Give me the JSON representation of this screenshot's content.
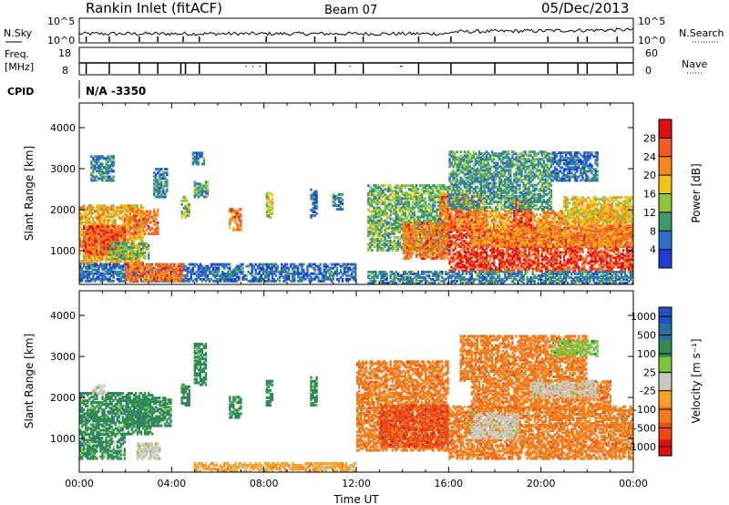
{
  "header": {
    "station": "Rankin Inlet (fitACF)",
    "beam": "Beam 07",
    "date": "05/Dec/2013"
  },
  "panels": {
    "nsky_label": "N.Sky",
    "nsky_ticks": [
      "10^5",
      "10^0"
    ],
    "nsearch_label": "N.Search",
    "nsearch_ticks": [
      "10^5",
      "10^0"
    ],
    "freq_label_top": "Freq.",
    "freq_label_units": "[MHz]",
    "freq_ticks": [
      "18",
      "8"
    ],
    "nave_label": "Nave",
    "nave_ticks": [
      "60",
      "0"
    ],
    "cpid_label": "CPID",
    "cpid_value": "N/A -3350"
  },
  "colors": {
    "power": [
      "#1f3bd6",
      "#2e6ec9",
      "#3d9a6a",
      "#8fc43e",
      "#f2c418",
      "#f7861d",
      "#f15a22",
      "#e01010"
    ],
    "velocity": [
      "#2050c8",
      "#2e6e9e",
      "#2e8c52",
      "#7cc43a",
      "#c8c8c0",
      "#f7a02a",
      "#f27a1a",
      "#e84a1a",
      "#e01010"
    ]
  },
  "chart_data": [
    {
      "type": "heatmap",
      "name": "Power",
      "xlabel": "",
      "ylabel": "Slant Range [km]",
      "x_ticks": [
        "00:00",
        "04:00",
        "08:00",
        "12:00",
        "16:00",
        "20:00",
        "00:00"
      ],
      "xlim_hours": [
        0,
        24
      ],
      "y_ticks": [
        1000,
        2000,
        3000,
        4000
      ],
      "ylim": [
        180,
        4600
      ],
      "colorbar": {
        "label": "Power [dB]",
        "ticks": [
          "4",
          "8",
          "12",
          "16",
          "20",
          "24",
          "28"
        ],
        "range": [
          0,
          32
        ]
      },
      "blobs": [
        {
          "t0": 0.0,
          "t1": 2.8,
          "r0": 600,
          "r1": 2100,
          "v": 20
        },
        {
          "t0": 0.2,
          "t1": 2.0,
          "r0": 900,
          "r1": 1600,
          "v": 26
        },
        {
          "t0": 2.2,
          "t1": 3.4,
          "r0": 1400,
          "r1": 2000,
          "v": 24
        },
        {
          "t0": 0.5,
          "t1": 1.5,
          "r0": 2700,
          "r1": 3300,
          "v": 8
        },
        {
          "t0": 3.2,
          "t1": 3.8,
          "r0": 2300,
          "r1": 3000,
          "v": 8
        },
        {
          "t0": 4.9,
          "t1": 5.4,
          "r0": 3100,
          "r1": 3400,
          "v": 8
        },
        {
          "t0": 4.4,
          "t1": 4.8,
          "r0": 1800,
          "r1": 2300,
          "v": 14
        },
        {
          "t0": 5.0,
          "t1": 5.6,
          "r0": 2300,
          "r1": 2700,
          "v": 10
        },
        {
          "t0": 6.5,
          "t1": 7.0,
          "r0": 1500,
          "r1": 2000,
          "v": 24
        },
        {
          "t0": 8.1,
          "t1": 8.4,
          "r0": 1800,
          "r1": 2400,
          "v": 16
        },
        {
          "t0": 10.0,
          "t1": 10.3,
          "r0": 1800,
          "r1": 2500,
          "v": 6
        },
        {
          "t0": 11.0,
          "t1": 11.4,
          "r0": 2000,
          "r1": 2400,
          "v": 8
        },
        {
          "t0": 0.0,
          "t1": 12.0,
          "r0": 250,
          "r1": 700,
          "v": 6
        },
        {
          "t0": 2.0,
          "t1": 4.5,
          "r0": 250,
          "r1": 700,
          "v": 24
        },
        {
          "t0": 1.3,
          "t1": 3.0,
          "r0": 800,
          "r1": 1200,
          "v": 12
        },
        {
          "t0": 12.5,
          "t1": 16.0,
          "r0": 1000,
          "r1": 2600,
          "v": 12
        },
        {
          "t0": 14.0,
          "t1": 16.0,
          "r0": 800,
          "r1": 1700,
          "v": 24
        },
        {
          "t0": 16.0,
          "t1": 24.0,
          "r0": 500,
          "r1": 1600,
          "v": 28
        },
        {
          "t0": 17.0,
          "t1": 24.0,
          "r0": 1100,
          "r1": 2000,
          "v": 22
        },
        {
          "t0": 15.6,
          "t1": 17.5,
          "r0": 1500,
          "r1": 2400,
          "v": 24
        },
        {
          "t0": 18.8,
          "t1": 19.6,
          "r0": 1600,
          "r1": 2300,
          "v": 26
        },
        {
          "t0": 16.0,
          "t1": 20.5,
          "r0": 2000,
          "r1": 3400,
          "v": 10
        },
        {
          "t0": 20.5,
          "t1": 22.5,
          "r0": 2700,
          "r1": 3400,
          "v": 6
        },
        {
          "t0": 21.0,
          "t1": 24.0,
          "r0": 1700,
          "r1": 2300,
          "v": 18
        },
        {
          "t0": 12.5,
          "t1": 24.0,
          "r0": 200,
          "r1": 500,
          "v": 8
        }
      ]
    },
    {
      "type": "heatmap",
      "name": "Velocity",
      "xlabel": "Time UT",
      "ylabel": "Slant Range [km]",
      "x_ticks": [
        "00:00",
        "04:00",
        "08:00",
        "12:00",
        "16:00",
        "20:00",
        "00:00"
      ],
      "xlim_hours": [
        0,
        24
      ],
      "y_ticks": [
        1000,
        2000,
        3000,
        4000
      ],
      "ylim": [
        180,
        4600
      ],
      "colorbar": {
        "label": "Velocity [m s⁻¹]",
        "ticks": [
          "1000",
          "500",
          "100",
          "25",
          "-25",
          "-100",
          "-500",
          "-1000"
        ]
      },
      "blobs": [
        {
          "t0": 0.0,
          "t1": 3.2,
          "r0": 1100,
          "r1": 2100,
          "c": 2
        },
        {
          "t0": 0.0,
          "t1": 2.0,
          "r0": 500,
          "r1": 1100,
          "c": 2
        },
        {
          "t0": 2.0,
          "t1": 4.0,
          "r0": 1300,
          "r1": 2000,
          "c": 2
        },
        {
          "t0": 4.4,
          "t1": 4.8,
          "r0": 1800,
          "r1": 2300,
          "c": 2
        },
        {
          "t0": 5.0,
          "t1": 5.5,
          "r0": 2300,
          "r1": 3300,
          "c": 2
        },
        {
          "t0": 6.5,
          "t1": 7.0,
          "r0": 1500,
          "r1": 2000,
          "c": 2
        },
        {
          "t0": 8.1,
          "t1": 8.4,
          "r0": 1800,
          "r1": 2400,
          "c": 2
        },
        {
          "t0": 10.0,
          "t1": 10.3,
          "r0": 1800,
          "r1": 2500,
          "c": 2
        },
        {
          "t0": 2.5,
          "t1": 3.5,
          "r0": 500,
          "r1": 900,
          "c": 4
        },
        {
          "t0": 0.6,
          "t1": 1.1,
          "r0": 2100,
          "r1": 2300,
          "c": 4
        },
        {
          "t0": 5.0,
          "t1": 12.0,
          "r0": 200,
          "r1": 400,
          "c": 5
        },
        {
          "t0": 12.0,
          "t1": 16.0,
          "r0": 700,
          "r1": 2900,
          "c": 6
        },
        {
          "t0": 13.0,
          "t1": 16.0,
          "r0": 800,
          "r1": 1800,
          "c": 7
        },
        {
          "t0": 16.0,
          "t1": 24.0,
          "r0": 500,
          "r1": 1800,
          "c": 6
        },
        {
          "t0": 17.0,
          "t1": 23.0,
          "r0": 1700,
          "r1": 2400,
          "c": 6
        },
        {
          "t0": 19.5,
          "t1": 22.5,
          "r0": 2000,
          "r1": 2400,
          "c": 4
        },
        {
          "t0": 17.0,
          "t1": 19.0,
          "r0": 1000,
          "r1": 1600,
          "c": 4
        },
        {
          "t0": 16.5,
          "t1": 22.0,
          "r0": 2400,
          "r1": 3500,
          "c": 6
        },
        {
          "t0": 20.5,
          "t1": 22.5,
          "r0": 3000,
          "r1": 3400,
          "c": 3
        }
      ]
    }
  ]
}
